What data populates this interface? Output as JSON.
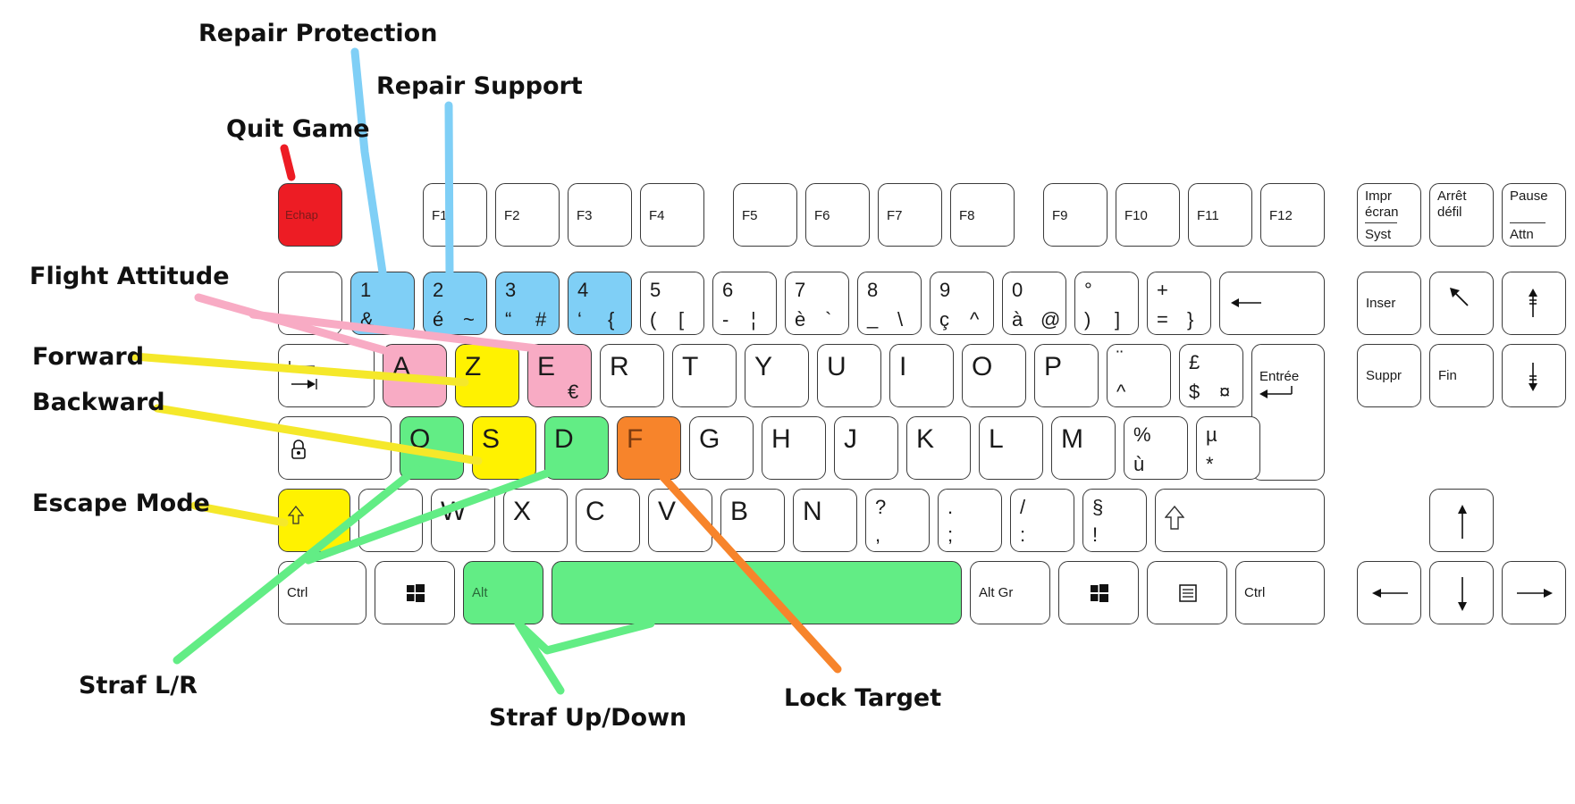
{
  "colors": {
    "red": "#ed1c24",
    "blue": "#7fcff6",
    "pink": "#f8abc4",
    "yellow": "#fff200",
    "green": "#62ed85",
    "orange": "#f7842b",
    "line_blue": "#7fcff6",
    "line_red": "#ed1c24",
    "line_pink": "#f8abc4",
    "line_yellow": "#f5e82a",
    "line_green": "#62ed85",
    "line_orange": "#f7842b"
  },
  "labels": {
    "repair_protection": "Repair Protection",
    "repair_support": "Repair Support",
    "quit_game": "Quit Game",
    "flight_attitude": "Flight Attitude",
    "forward": "Forward",
    "backward": "Backward",
    "escape_mode": "Escape Mode",
    "straf_lr": "Straf L/R",
    "straf_updown": "Straf Up/Down",
    "lock_target": "Lock Target"
  },
  "keys": {
    "echap": "Echap",
    "f1": "F1",
    "f2": "F2",
    "f3": "F3",
    "f4": "F4",
    "f5": "F5",
    "f6": "F6",
    "f7": "F7",
    "f8": "F8",
    "f9": "F9",
    "f10": "F10",
    "f11": "F11",
    "f12": "F12",
    "impr_1": "Impr",
    "impr_2": "écran",
    "impr_3": "Syst",
    "arret_1": "Arrêt",
    "arret_2": "défil",
    "pause_1": "Pause",
    "pause_2": "Attn",
    "k1_top": "1",
    "k1_bot": "&",
    "k2_top": "2",
    "k2_bot": "é",
    "k2_alt": "~",
    "k3_top": "3",
    "k3_bot": "“",
    "k3_alt": "#",
    "k4_top": "4",
    "k4_bot": "‘",
    "k4_alt": "{",
    "k5_top": "5",
    "k5_bot": "(",
    "k5_alt": "[",
    "k6_top": "6",
    "k6_bot": "-",
    "k6_alt": "¦",
    "k7_top": "7",
    "k7_bot": "è",
    "k7_alt": "`",
    "k8_top": "8",
    "k8_bot": "_",
    "k8_alt": "\\",
    "k9_top": "9",
    "k9_bot": "ç",
    "k9_alt": "^",
    "k0_top": "0",
    "k0_bot": "à",
    "k0_alt": "@",
    "deg_top": "°",
    "deg_bot": ")",
    "deg_alt": "]",
    "plus_top": "+",
    "plus_bot": "=",
    "plus_alt": "}",
    "inser": "Inser",
    "a": "A",
    "z": "Z",
    "e": "E",
    "e_alt": "€",
    "r": "R",
    "t": "T",
    "y": "Y",
    "u": "U",
    "i": "I",
    "o": "O",
    "p": "P",
    "trema_top": "¨",
    "trema_bot": "^",
    "pound_top": "£",
    "pound_bot": "$",
    "pound_alt": "¤",
    "entree": "Entrée",
    "suppr": "Suppr",
    "fin": "Fin",
    "q": "Q",
    "s": "S",
    "d": "D",
    "f": "F",
    "g": "G",
    "h": "H",
    "j": "J",
    "k": "K",
    "l": "L",
    "m": "M",
    "pct_top": "%",
    "pct_bot": "ù",
    "mu_top": "µ",
    "mu_bot": "*",
    "w": "W",
    "x": "X",
    "c": "C",
    "v": "V",
    "b": "B",
    "n": "N",
    "q_top": "?",
    "q_bot": ",",
    "dot_top": ".",
    "dot_bot": ";",
    "slash_top": "/",
    "slash_bot": ":",
    "sect_top": "§",
    "sect_bot": "!",
    "ctrl_l": "Ctrl",
    "alt": "Alt",
    "altgr": "Alt Gr",
    "ctrl_r": "Ctrl"
  }
}
